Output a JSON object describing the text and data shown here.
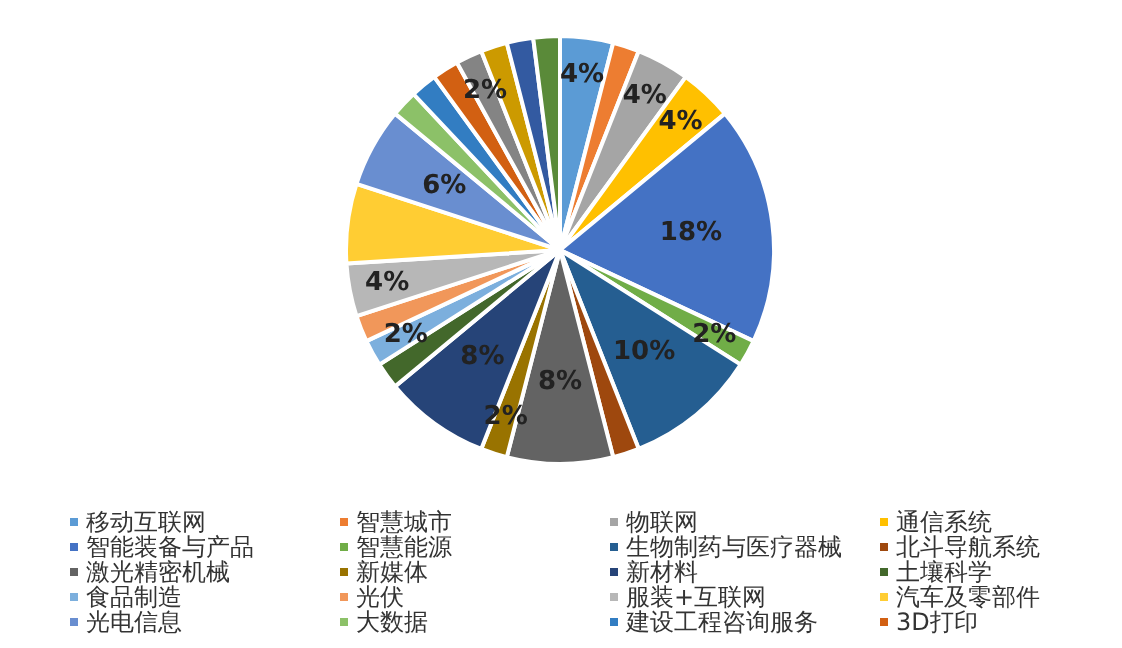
{
  "chart_data": {
    "type": "pie",
    "categories": [
      "移动互联网",
      "智慧城市",
      "物联网",
      "通信系统",
      "智能装备与产品",
      "智慧能源",
      "生物制药与医疗器械",
      "北斗导航系统",
      "激光精密机械",
      "新媒体",
      "新材料",
      "土壤科学",
      "食品制造",
      "光伏",
      "服装+互联网",
      "汽车及零部件",
      "光电信息",
      "大数据",
      "建设工程咨询服务",
      "3D打印",
      null,
      null,
      null,
      null
    ],
    "values": [
      4,
      2,
      4,
      4,
      18,
      2,
      10,
      2,
      8,
      2,
      8,
      2,
      2,
      2,
      4,
      6,
      6,
      2,
      2,
      2,
      2,
      2,
      2,
      2
    ],
    "value_labels": [
      "4%",
      null,
      "4%",
      "4%",
      "18%",
      "2%",
      "10%",
      null,
      "8%",
      "2%",
      "8%",
      null,
      "2%",
      null,
      "4%",
      null,
      "6%",
      null,
      null,
      null,
      "2%",
      null,
      null,
      null
    ],
    "colors": [
      "#5b9bd5",
      "#ed7d31",
      "#a5a5a5",
      "#ffc000",
      "#4472c4",
      "#70ad47",
      "#255e91",
      "#9e480e",
      "#636363",
      "#997300",
      "#264478",
      "#43682b",
      "#7cafdd",
      "#f1975a",
      "#b7b7b7",
      "#ffcd33",
      "#698ed0",
      "#8cc168",
      "#327dc2",
      "#d26012",
      "#848484",
      "#cc9a00",
      "#335aa1",
      "#5a8a39"
    ],
    "legend": "bottom"
  }
}
